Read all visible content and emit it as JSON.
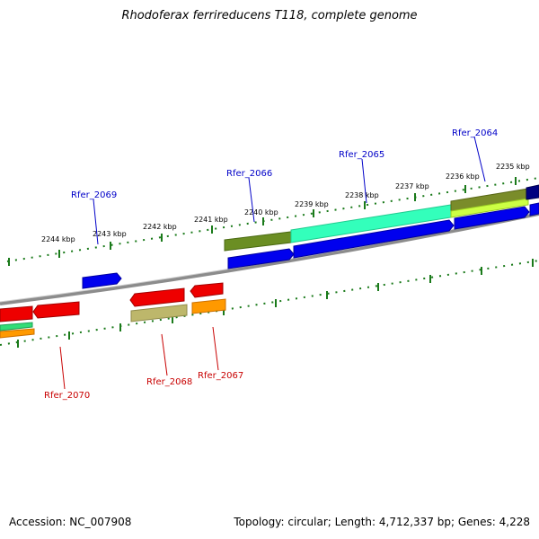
{
  "title": "Rhodoferax ferrireducens T118, complete genome",
  "footer": {
    "accession": "Accession: NC_007908",
    "summary": "Topology: circular; Length: 4,712,337 bp; Genes: 4,228"
  },
  "colors": {
    "forward_label": "#0000c8",
    "reverse_label": "#c80000",
    "tick": "#1a7a1a",
    "backbone": "#808080"
  },
  "kbp_labels": [
    "2235 kbp",
    "2236 kbp",
    "2237 kbp",
    "2238 kbp",
    "2239 kbp",
    "2240 kbp",
    "2241 kbp",
    "2242 kbp",
    "2243 kbp",
    "2244 kbp"
  ],
  "gene_labels": {
    "forward": [
      "Rfer_2064",
      "Rfer_2065",
      "Rfer_2066",
      "Rfer_2069"
    ],
    "reverse": [
      "Rfer_2067",
      "Rfer_2068",
      "Rfer_2070"
    ]
  }
}
